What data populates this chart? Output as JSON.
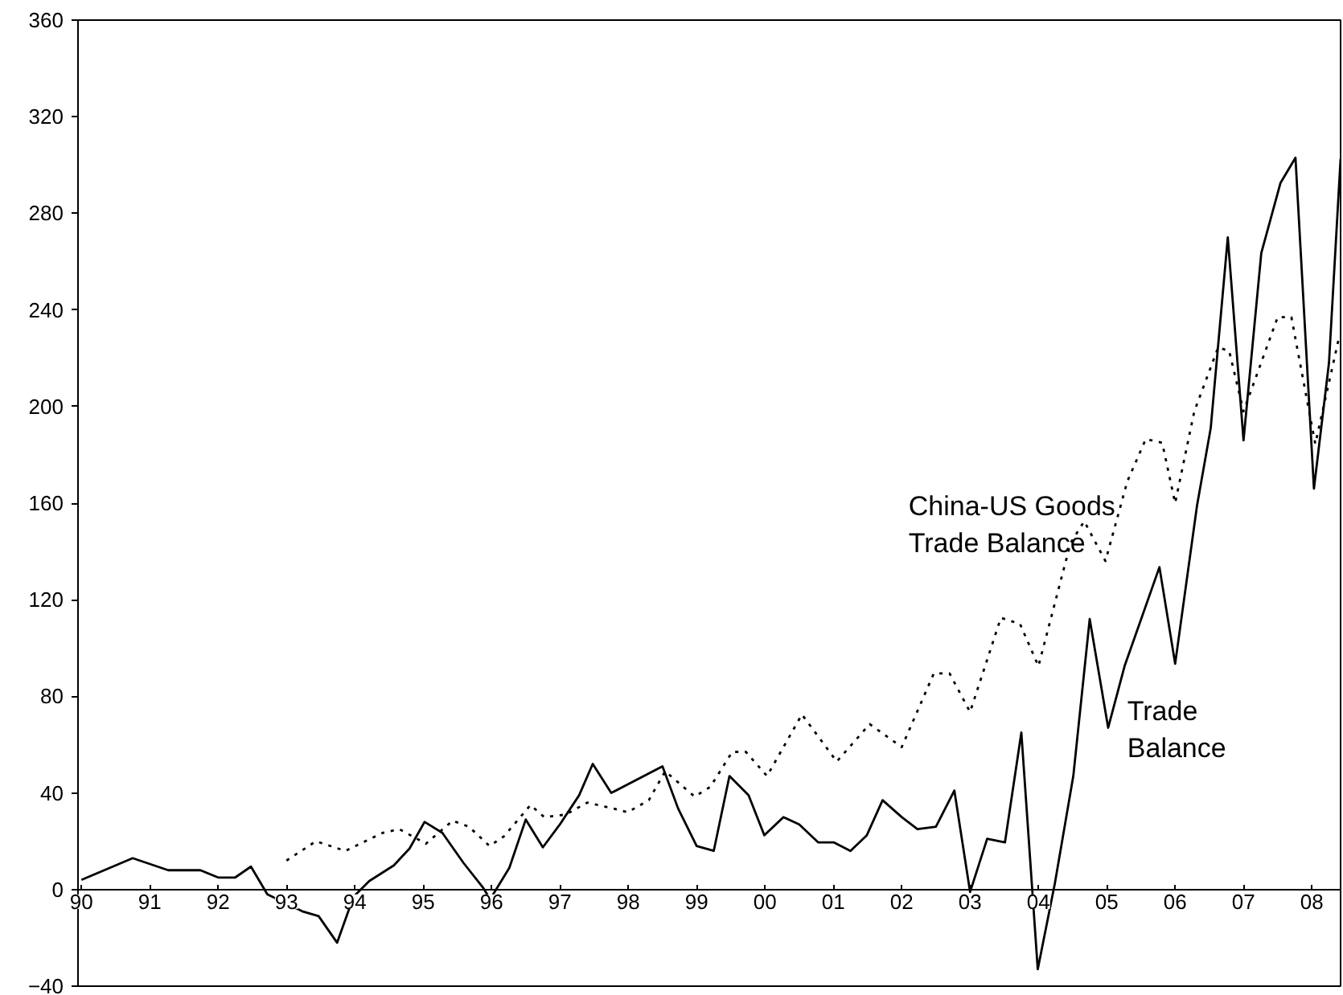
{
  "chart_data": {
    "type": "line",
    "xlim": [
      1989.95,
      2008.42
    ],
    "ylim": [
      -40,
      360
    ],
    "xticks": [
      {
        "value": 1990,
        "label": "90"
      },
      {
        "value": 1991,
        "label": "91"
      },
      {
        "value": 1992,
        "label": "92"
      },
      {
        "value": 1993,
        "label": "93"
      },
      {
        "value": 1994,
        "label": "94"
      },
      {
        "value": 1995,
        "label": "95"
      },
      {
        "value": 1996,
        "label": "96"
      },
      {
        "value": 1997,
        "label": "97"
      },
      {
        "value": 1998,
        "label": "98"
      },
      {
        "value": 1999,
        "label": "99"
      },
      {
        "value": 2000,
        "label": "00"
      },
      {
        "value": 2001,
        "label": "01"
      },
      {
        "value": 2002,
        "label": "02"
      },
      {
        "value": 2003,
        "label": "03"
      },
      {
        "value": 2004,
        "label": "04"
      },
      {
        "value": 2005,
        "label": "05"
      },
      {
        "value": 2006,
        "label": "06"
      },
      {
        "value": 2007,
        "label": "07"
      },
      {
        "value": 2008,
        "label": "08"
      }
    ],
    "yticks": [
      -40,
      0,
      40,
      80,
      120,
      160,
      200,
      240,
      280,
      320,
      360
    ],
    "grid": false,
    "series": [
      {
        "name": "Trade Balance",
        "color": "#000000",
        "line_style": "solid",
        "x": [
          1990.0,
          1990.75,
          1991.27,
          1991.74,
          1992.0,
          1992.25,
          1992.48,
          1992.72,
          1993.23,
          1993.47,
          1993.74,
          1993.98,
          1994.21,
          1994.57,
          1994.8,
          1995.02,
          1995.28,
          1995.59,
          1995.87,
          1995.98,
          1996.26,
          1996.5,
          1996.75,
          1997.0,
          1997.28,
          1997.48,
          1997.75,
          1998.5,
          1998.73,
          1999.0,
          1999.25,
          1999.48,
          1999.76,
          1999.99,
          2000.27,
          2000.5,
          2000.78,
          2001.01,
          2001.25,
          2001.49,
          2001.72,
          2002.0,
          2002.23,
          2002.5,
          2002.77,
          2003.0,
          2003.25,
          2003.51,
          2003.75,
          2003.99,
          2004.24,
          2004.51,
          2004.75,
          2005.02,
          2005.26,
          2005.77,
          2006.0,
          2006.32,
          2006.52,
          2006.77,
          2007.0,
          2007.26,
          2007.54,
          2007.76,
          2008.03,
          2008.25,
          2008.42
        ],
        "values": [
          4,
          13,
          8,
          8,
          5,
          5,
          9.5,
          -2,
          -9,
          -11,
          -22,
          -3,
          3.5,
          10,
          17,
          28,
          23.5,
          11,
          1,
          -4,
          9,
          29,
          17.5,
          27,
          39,
          52,
          40,
          51,
          33.5,
          18,
          16,
          47,
          39,
          22.5,
          30,
          27,
          19.5,
          19.5,
          16,
          22.5,
          37,
          30,
          25,
          26,
          41,
          -1,
          21,
          19.5,
          65,
          -33,
          2.5,
          47,
          112,
          67,
          92.5,
          133.5,
          93.5,
          159,
          191,
          270,
          186,
          263.5,
          292.5,
          303,
          166,
          218,
          302.5
        ]
      },
      {
        "name": "China-US Goods Trade Balance",
        "color": "#000000",
        "line_style": "dotted",
        "x": [
          1993.0,
          1993.43,
          1993.86,
          1994.41,
          1994.65,
          1995.04,
          1995.43,
          1995.67,
          1995.97,
          1996.18,
          1996.57,
          1996.77,
          1997.08,
          1997.4,
          1997.79,
          1997.99,
          1998.3,
          1998.54,
          1998.97,
          1999.2,
          1999.52,
          1999.72,
          2000.03,
          2000.54,
          2001.05,
          2001.53,
          2002.0,
          2002.47,
          2002.7,
          2003.0,
          2003.45,
          2003.73,
          2004.0,
          2004.47,
          2004.67,
          2004.98,
          2005.3,
          2005.57,
          2005.81,
          2006.0,
          2006.28,
          2006.63,
          2006.79,
          2007.0,
          2007.5,
          2007.7,
          2008.05,
          2008.4
        ],
        "values": [
          12,
          20,
          16,
          23.5,
          25,
          19,
          28.5,
          26,
          18,
          22,
          35,
          30,
          31,
          36,
          33.5,
          32,
          37,
          49,
          38.5,
          42.5,
          57,
          57,
          47,
          72.5,
          53,
          68.5,
          59,
          89.5,
          89.5,
          73.5,
          112.5,
          110,
          92.5,
          143.5,
          152.5,
          136,
          169,
          186.5,
          185,
          160,
          198,
          224.5,
          223,
          198,
          237,
          237,
          184.5,
          229
        ]
      }
    ]
  }
}
